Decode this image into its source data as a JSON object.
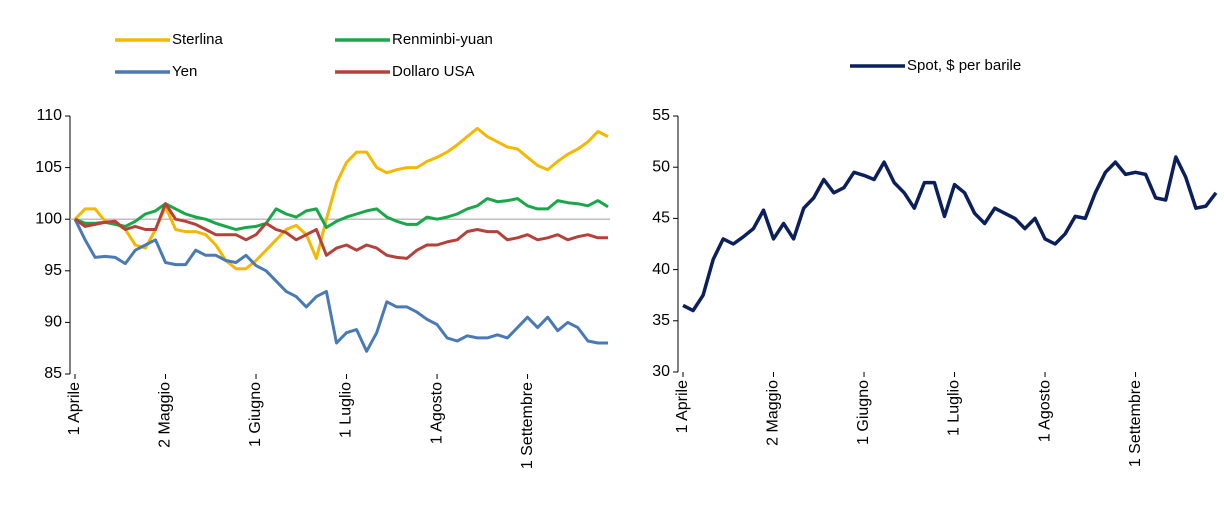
{
  "chart_data": [
    {
      "type": "line",
      "categories": [
        "1 Aprile",
        null,
        null,
        null,
        null,
        null,
        null,
        null,
        null,
        "2 Maggio",
        null,
        null,
        null,
        null,
        null,
        null,
        null,
        null,
        "1 Giugno",
        null,
        null,
        null,
        null,
        null,
        null,
        null,
        null,
        "1 Luglio",
        null,
        null,
        null,
        null,
        null,
        null,
        null,
        null,
        "1 Agosto",
        null,
        null,
        null,
        null,
        null,
        null,
        null,
        null,
        "1 Settembre",
        null,
        null,
        null,
        null,
        null,
        null,
        null,
        null
      ],
      "series": [
        {
          "name": "Sterlina",
          "color": "#f5b800",
          "values": [
            100,
            101,
            101,
            99.8,
            99.6,
            99,
            97.5,
            97.2,
            99,
            101.2,
            99,
            98.8,
            98.8,
            98.5,
            97.5,
            96,
            95.2,
            95.2,
            96,
            97,
            98,
            99,
            99.4,
            98.5,
            96.2,
            100,
            103.5,
            105.5,
            106.5,
            106.5,
            105,
            104.5,
            104.8,
            105,
            105,
            105.6,
            106,
            106.5,
            107.2,
            108,
            108.8,
            108,
            107.5,
            107,
            106.8,
            106,
            105.2,
            104.8,
            105.6,
            106.3,
            106.8,
            107.5,
            108.5,
            108
          ]
        },
        {
          "name": "Renminbi-yuan",
          "color": "#1aa74a",
          "values": [
            100,
            99.6,
            99.6,
            99.7,
            99.5,
            99.3,
            99.8,
            100.5,
            100.8,
            101.5,
            101,
            100.5,
            100.2,
            100,
            99.6,
            99.3,
            99,
            99.2,
            99.3,
            99.6,
            101,
            100.5,
            100.2,
            100.8,
            101,
            99.2,
            99.8,
            100.2,
            100.5,
            100.8,
            101,
            100.2,
            99.8,
            99.5,
            99.5,
            100.2,
            100,
            100.2,
            100.5,
            101,
            101.3,
            102,
            101.7,
            101.8,
            102,
            101.3,
            101,
            101,
            101.8,
            101.6,
            101.5,
            101.3,
            101.8,
            101.2
          ]
        },
        {
          "name": "Yen",
          "color": "#4a7ab5",
          "values": [
            100,
            98,
            96.3,
            96.4,
            96.3,
            95.7,
            97,
            97.5,
            98,
            95.8,
            95.6,
            95.6,
            97,
            96.5,
            96.5,
            96,
            95.8,
            96.5,
            95.5,
            95,
            94,
            93,
            92.5,
            91.5,
            92.5,
            93,
            88,
            89,
            89.3,
            87.2,
            89,
            92,
            91.5,
            91.5,
            91,
            90.3,
            89.8,
            88.5,
            88.2,
            88.7,
            88.5,
            88.5,
            88.8,
            88.5,
            89.5,
            90.5,
            89.5,
            90.5,
            89.2,
            90,
            89.5,
            88.2,
            88,
            88
          ]
        },
        {
          "name": "Dollaro USA",
          "color": "#b5423a",
          "values": [
            100,
            99.3,
            99.5,
            99.7,
            99.8,
            99,
            99.3,
            99,
            99,
            101.5,
            100,
            99.8,
            99.5,
            99,
            98.5,
            98.5,
            98.5,
            98,
            98.5,
            99.6,
            99,
            98.7,
            98,
            98.5,
            99,
            96.5,
            97.2,
            97.5,
            97,
            97.5,
            97.2,
            96.5,
            96.3,
            96.2,
            97,
            97.5,
            97.5,
            97.8,
            98,
            98.8,
            99,
            98.8,
            98.8,
            98,
            98.2,
            98.5,
            98,
            98.2,
            98.5,
            98,
            98.3,
            98.5,
            98.2,
            98.2
          ]
        }
      ],
      "ylim": [
        85,
        110
      ],
      "yticks": [
        85,
        90,
        95,
        100,
        105,
        110
      ],
      "hline": 100
    },
    {
      "type": "line",
      "categories": [
        "1 Aprile",
        null,
        null,
        null,
        null,
        null,
        null,
        null,
        null,
        "2 Maggio",
        null,
        null,
        null,
        null,
        null,
        null,
        null,
        null,
        "1 Giugno",
        null,
        null,
        null,
        null,
        null,
        null,
        null,
        null,
        "1 Luglio",
        null,
        null,
        null,
        null,
        null,
        null,
        null,
        null,
        "1 Agosto",
        null,
        null,
        null,
        null,
        null,
        null,
        null,
        null,
        "1 Settembre",
        null,
        null,
        null,
        null,
        null,
        null,
        null,
        null
      ],
      "series": [
        {
          "name": "Spot, $ per barile",
          "color": "#0b1f5c",
          "values": [
            36.5,
            36,
            37.5,
            41,
            43,
            42.5,
            43.2,
            44,
            45.8,
            43,
            44.5,
            43,
            46,
            47,
            48.8,
            47.5,
            48,
            49.5,
            49.2,
            48.8,
            50.5,
            48.5,
            47.5,
            46,
            48.5,
            48.5,
            45.2,
            48.3,
            47.5,
            45.5,
            44.5,
            46,
            45.5,
            45,
            44,
            45,
            43,
            42.5,
            43.5,
            45.2,
            45,
            47.5,
            49.5,
            50.5,
            49.3,
            49.5,
            49.3,
            47,
            46.8,
            51,
            49,
            46,
            46.2,
            47.5
          ]
        }
      ],
      "ylim": [
        30,
        55
      ],
      "yticks": [
        30,
        35,
        40,
        45,
        50,
        55
      ]
    }
  ]
}
